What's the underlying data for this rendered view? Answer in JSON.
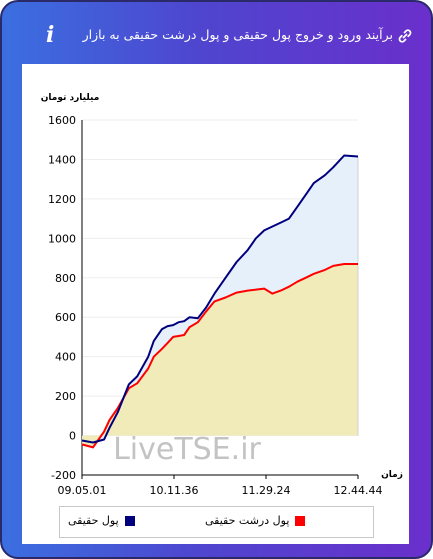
{
  "header": {
    "title": "برآیند ورود و خروج پول حقیقی و پول درشت حقیقی به بازار",
    "info_glyph": "i",
    "link_icon": "link-icon"
  },
  "watermark": "LiveTSE.ir",
  "colors": {
    "real_money": "#00007f",
    "big_real_money": "#ff0000",
    "area_real": "#e6f0fa",
    "area_big": "#f0ebb8"
  },
  "chart_data": {
    "type": "line",
    "ylabel": "میلیارد تومان",
    "xlabel": "زمان",
    "ylim": [
      -200,
      1600
    ],
    "yticks": [
      -200,
      0,
      200,
      400,
      600,
      800,
      1000,
      1200,
      1400,
      1600
    ],
    "xticks": [
      "09.05.01",
      "10.11.36",
      "11.29.24",
      "12.44.44"
    ],
    "x": [
      0,
      4,
      8,
      10,
      13,
      17,
      20,
      24,
      26,
      29,
      31,
      33,
      35,
      37,
      39,
      42,
      45,
      48,
      52,
      56,
      60,
      63,
      66,
      69,
      72,
      75,
      78,
      81,
      84,
      88,
      91,
      95,
      100
    ],
    "series": [
      {
        "name": "پول حقیقی",
        "values": [
          -25,
          -35,
          -20,
          40,
          120,
          260,
          300,
          400,
          480,
          540,
          555,
          560,
          575,
          580,
          600,
          595,
          650,
          720,
          800,
          880,
          940,
          1000,
          1040,
          1060,
          1080,
          1100,
          1160,
          1220,
          1280,
          1320,
          1360,
          1420,
          1415
        ]
      },
      {
        "name": "پول درشت حقیقی",
        "values": [
          -45,
          -60,
          20,
          80,
          140,
          240,
          265,
          340,
          400,
          440,
          470,
          500,
          505,
          510,
          550,
          575,
          630,
          680,
          700,
          725,
          735,
          740,
          745,
          720,
          735,
          755,
          780,
          800,
          820,
          840,
          860,
          870,
          870
        ]
      }
    ]
  }
}
